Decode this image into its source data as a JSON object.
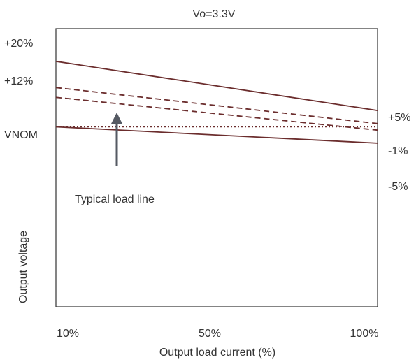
{
  "chart_data": {
    "type": "line",
    "title": "Vo=3.3V",
    "xlabel": "Output load current (%)",
    "ylabel": "Output voltage",
    "x_ticks": [
      "10%",
      "50%",
      "100%"
    ],
    "left_tick_labels": [
      "+20%",
      "+12%",
      "VNOM"
    ],
    "right_labels": [
      "+5%",
      "-1%",
      "-5%"
    ],
    "annotation": "Typical load line",
    "x": [
      10,
      100
    ],
    "series": [
      {
        "values": [
          20,
          5
        ],
        "style": "solid"
      },
      {
        "values": [
          12,
          1
        ],
        "style": "dashed"
      },
      {
        "values": [
          9,
          -1
        ],
        "style": "dashed"
      },
      {
        "values": [
          0,
          0
        ],
        "style": "dotted"
      },
      {
        "values": [
          0,
          -5
        ],
        "style": "solid"
      }
    ],
    "ylim": [
      -55,
      30
    ],
    "units": "%",
    "grid": false,
    "line_color": "#6b2d2d",
    "arrow_color": "#555a63"
  }
}
